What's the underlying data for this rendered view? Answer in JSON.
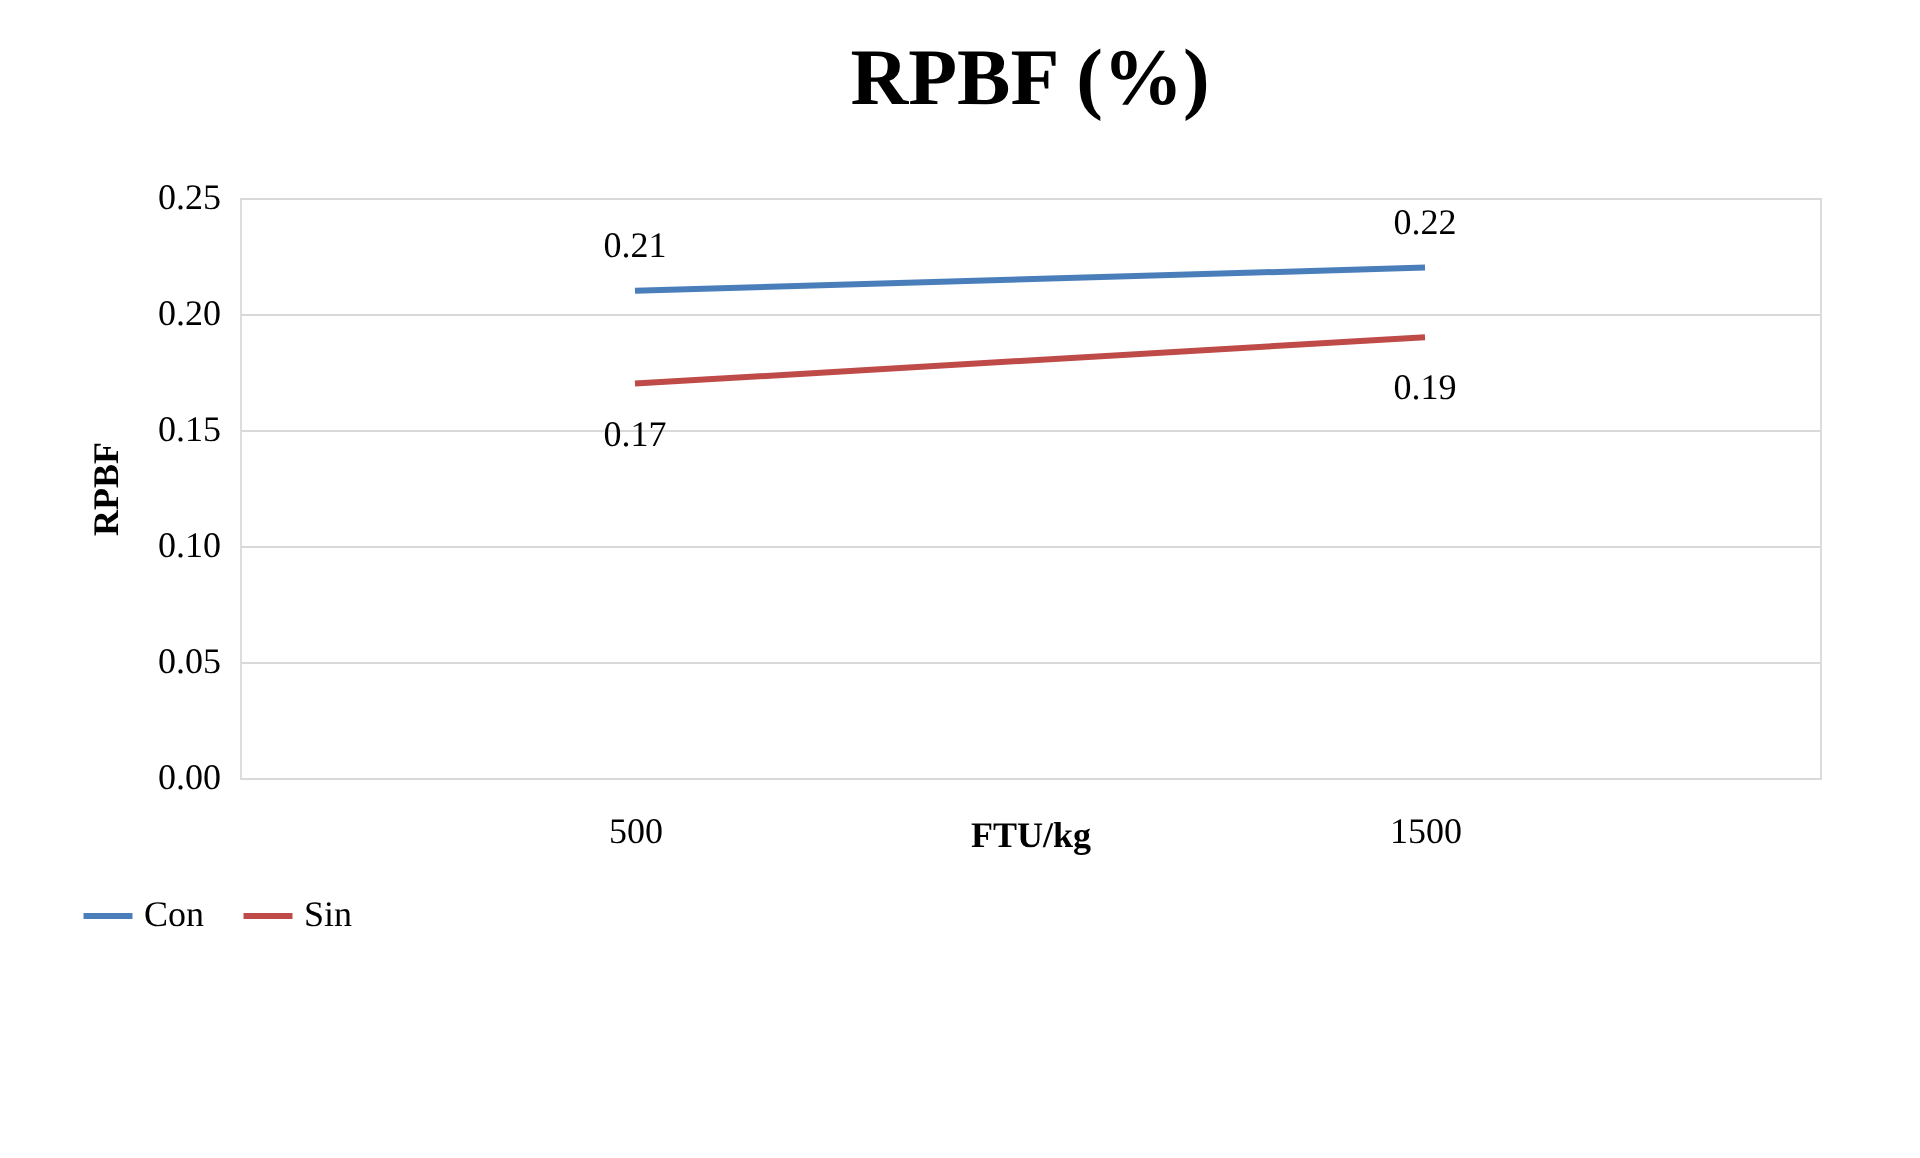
{
  "chart_data": {
    "type": "line",
    "title": "RPBF (%)",
    "xlabel": "FTU/kg",
    "ylabel": "RPBF",
    "categories": [
      "500",
      "1500"
    ],
    "series": [
      {
        "name": "Con",
        "color": "#4a7ebb",
        "values": [
          0.21,
          0.22
        ]
      },
      {
        "name": "Sin",
        "color": "#be4b48",
        "values": [
          0.17,
          0.19
        ]
      }
    ],
    "ylim": [
      0,
      0.25
    ],
    "yticks": [
      {
        "value": 0,
        "label": "0.00"
      },
      {
        "value": 0.05,
        "label": "0.05"
      },
      {
        "value": 0.1,
        "label": "0.10"
      },
      {
        "value": 0.15,
        "label": "0.15"
      },
      {
        "value": 0.2,
        "label": "0.20"
      },
      {
        "value": 0.25,
        "label": "0.25"
      }
    ],
    "grid": "y",
    "legend": "bottom left",
    "data_labels": true,
    "marker": "none",
    "line_style": "solid"
  }
}
